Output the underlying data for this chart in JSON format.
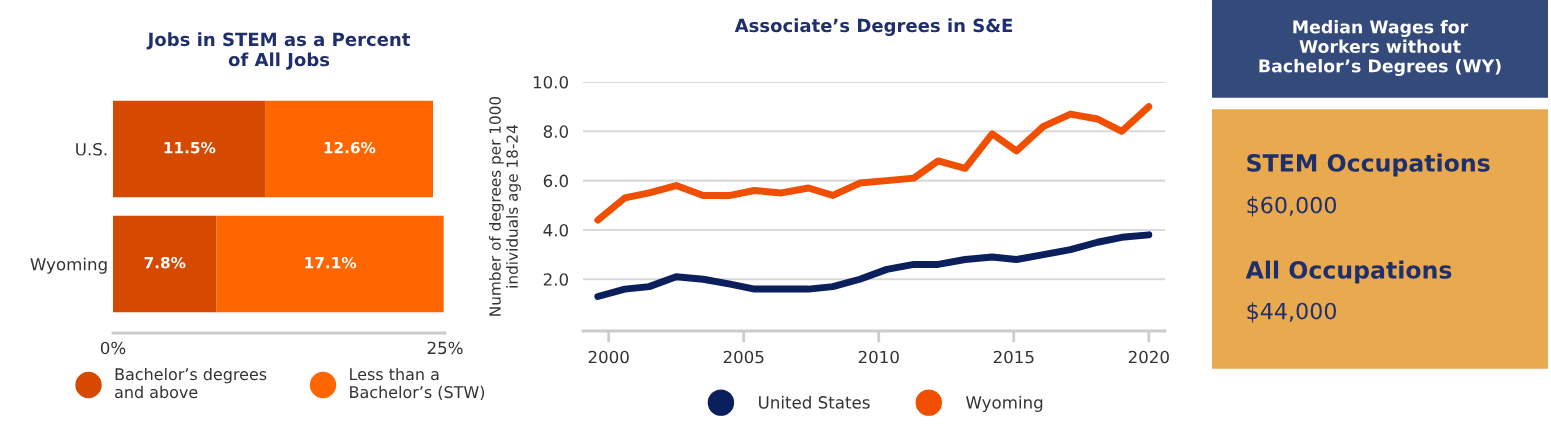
{
  "chart_data": [
    {
      "type": "bar",
      "title": "Jobs in STEM as a Percent\nof All Jobs",
      "orientation": "horizontal",
      "stacked": true,
      "categories": [
        "U.S.",
        "Wyoming"
      ],
      "series": [
        {
          "name": "Bachelor’s degrees\nand above",
          "color": "#d54a00",
          "values": [
            11.5,
            7.8
          ],
          "value_labels": [
            "11.5%",
            "7.8%"
          ]
        },
        {
          "name": "Less than a\nBachelor’s (STW)",
          "color": "#ff6600",
          "values": [
            12.6,
            17.1
          ],
          "value_labels": [
            "12.6%",
            "17.1%"
          ]
        }
      ],
      "xlim": [
        0,
        25
      ],
      "xticks": [
        {
          "value": 0,
          "label": "0%"
        },
        {
          "value": 25,
          "label": "25%"
        }
      ],
      "grid": false,
      "legend": "bottom"
    },
    {
      "type": "line",
      "title": "Associate’s Degrees in S&E",
      "ylabel": "Number of degrees per 1000\nindividuals age 18-24",
      "x": [
        1999.6,
        2000.6,
        2001.5,
        2002.5,
        2003.5,
        2004.5,
        2005.4,
        2006.4,
        2007.4,
        2008.3,
        2009.3,
        2010.3,
        2011.3,
        2012.2,
        2013.2,
        2014.2,
        2015.1,
        2016.1,
        2017.1,
        2018.1,
        2019.0,
        2020.0
      ],
      "series": [
        {
          "name": "United States",
          "color": "#0b1f5c",
          "values": [
            1.3,
            1.6,
            1.7,
            2.1,
            2.0,
            1.8,
            1.6,
            1.6,
            1.6,
            1.7,
            2.0,
            2.4,
            2.6,
            2.6,
            2.8,
            2.9,
            2.8,
            3.0,
            3.2,
            3.5,
            3.7,
            3.8
          ]
        },
        {
          "name": "Wyoming",
          "color": "#f04e00",
          "values": [
            4.4,
            5.3,
            5.5,
            5.8,
            5.4,
            5.4,
            5.6,
            5.5,
            5.7,
            5.4,
            5.9,
            6.0,
            6.1,
            6.8,
            6.5,
            7.9,
            7.2,
            8.2,
            8.7,
            8.5,
            8.0,
            9.0
          ]
        }
      ],
      "xlim": [
        1999.05,
        2020.6
      ],
      "xticks": [
        2000,
        2005,
        2010,
        2015,
        2020
      ],
      "ylim": [
        -0.1,
        10
      ],
      "yticks": [
        {
          "value": 2,
          "label": "2.0"
        },
        {
          "value": 4,
          "label": "4.0"
        },
        {
          "value": 6,
          "label": "6.0"
        },
        {
          "value": 8,
          "label": "8.0"
        },
        {
          "value": 10,
          "label": "10.0"
        }
      ],
      "grid": "y",
      "legend": "bottom",
      "marker": "none",
      "line_style": "solid"
    },
    {
      "type": "other",
      "title": "Median Wages for\nWorkers without\nBachelor’s Degrees (WY)",
      "annotations": [
        "STEM Occupations",
        "$60,000",
        "All Occupations",
        "$44,000"
      ]
    }
  ]
}
